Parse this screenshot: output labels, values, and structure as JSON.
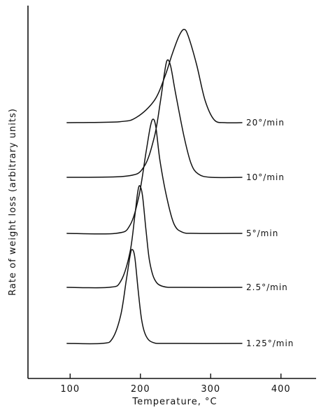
{
  "chart_data": {
    "type": "line",
    "title": "",
    "xlabel": "Temperature, °C",
    "ylabel": "Rate of weight loss  (arbitrary units)",
    "xlim": [
      40,
      450
    ],
    "xticks": [
      100,
      200,
      300,
      400
    ],
    "xtick_labels": [
      "100",
      "200",
      "300",
      "400"
    ],
    "y_ticks_shown": false,
    "grid": false,
    "legend": "inline-right",
    "series": [
      {
        "name": "20°/min",
        "baseline_rank": 5,
        "x": [
          95,
          170,
          195,
          220,
          235,
          245,
          255,
          262,
          268,
          280,
          292,
          305,
          320,
          345
        ],
        "y": [
          0,
          0.01,
          0.06,
          0.24,
          0.5,
          0.73,
          0.93,
          1.0,
          0.93,
          0.62,
          0.24,
          0.03,
          0,
          0
        ]
      },
      {
        "name": "10°/min",
        "baseline_rank": 4,
        "x": [
          95,
          180,
          205,
          220,
          228,
          234,
          238,
          243,
          250,
          262,
          272,
          282,
          300,
          345
        ],
        "y": [
          0,
          0.01,
          0.09,
          0.35,
          0.63,
          0.88,
          1.0,
          0.95,
          0.72,
          0.35,
          0.12,
          0.03,
          0,
          0
        ]
      },
      {
        "name": "5°/min",
        "baseline_rank": 3,
        "x": [
          95,
          165,
          185,
          198,
          208,
          214,
          218,
          222,
          228,
          238,
          248,
          260,
          280,
          345
        ],
        "y": [
          0,
          0,
          0.07,
          0.33,
          0.71,
          0.93,
          1.0,
          0.93,
          0.63,
          0.3,
          0.08,
          0.01,
          0,
          0
        ]
      },
      {
        "name": "2.5°/min",
        "baseline_rank": 2,
        "x": [
          95,
          155,
          172,
          185,
          192,
          196,
          199,
          203,
          208,
          213,
          220,
          232,
          260,
          345
        ],
        "y": [
          0,
          0,
          0.06,
          0.34,
          0.7,
          0.93,
          1.0,
          0.9,
          0.56,
          0.26,
          0.08,
          0.01,
          0,
          0
        ]
      },
      {
        "name": "1.25°/min",
        "baseline_rank": 1,
        "x": [
          95,
          145,
          160,
          172,
          180,
          185,
          188,
          192,
          197,
          202,
          208,
          218,
          240,
          345
        ],
        "y": [
          0,
          0,
          0.05,
          0.3,
          0.68,
          0.92,
          1.0,
          0.92,
          0.55,
          0.24,
          0.08,
          0.01,
          0,
          0
        ]
      }
    ]
  }
}
